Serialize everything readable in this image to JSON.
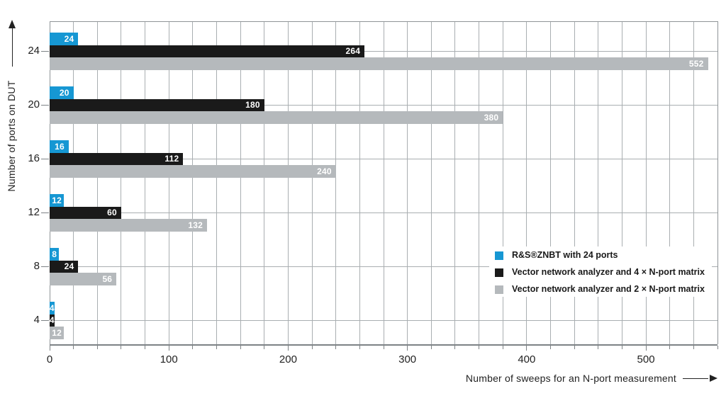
{
  "figure": {
    "background": "#ffffff"
  },
  "chart_data": {
    "type": "bar",
    "orientation": "horizontal",
    "title": "",
    "xlabel": "Number of sweeps for an N-port measurement",
    "ylabel": "Number of ports on DUT",
    "categories": [
      "24",
      "20",
      "16",
      "12",
      "8",
      "4"
    ],
    "xlim": [
      0,
      560
    ],
    "x_major_ticks": [
      0,
      100,
      200,
      300,
      400,
      500
    ],
    "x_minor_step": 20,
    "grid": true,
    "legend_position": "inside-right",
    "series": [
      {
        "name": "R&S®ZNBT with 24 ports",
        "color": "#1697d3",
        "values": [
          24,
          20,
          16,
          12,
          8,
          4
        ]
      },
      {
        "name": "Vector network analyzer and 4 × N-port matrix",
        "color": "#1a1a1a",
        "values": [
          264,
          180,
          112,
          60,
          24,
          4
        ]
      },
      {
        "name": "Vector network analyzer and 2 × N-port matrix",
        "color": "#b5b9bc",
        "values": [
          552,
          380,
          240,
          132,
          56,
          12
        ]
      }
    ]
  },
  "colors": {
    "grid": "#a9aeb1",
    "axis": "#7d8285",
    "text": "#222222",
    "bar_value_label": "#ffffff"
  }
}
